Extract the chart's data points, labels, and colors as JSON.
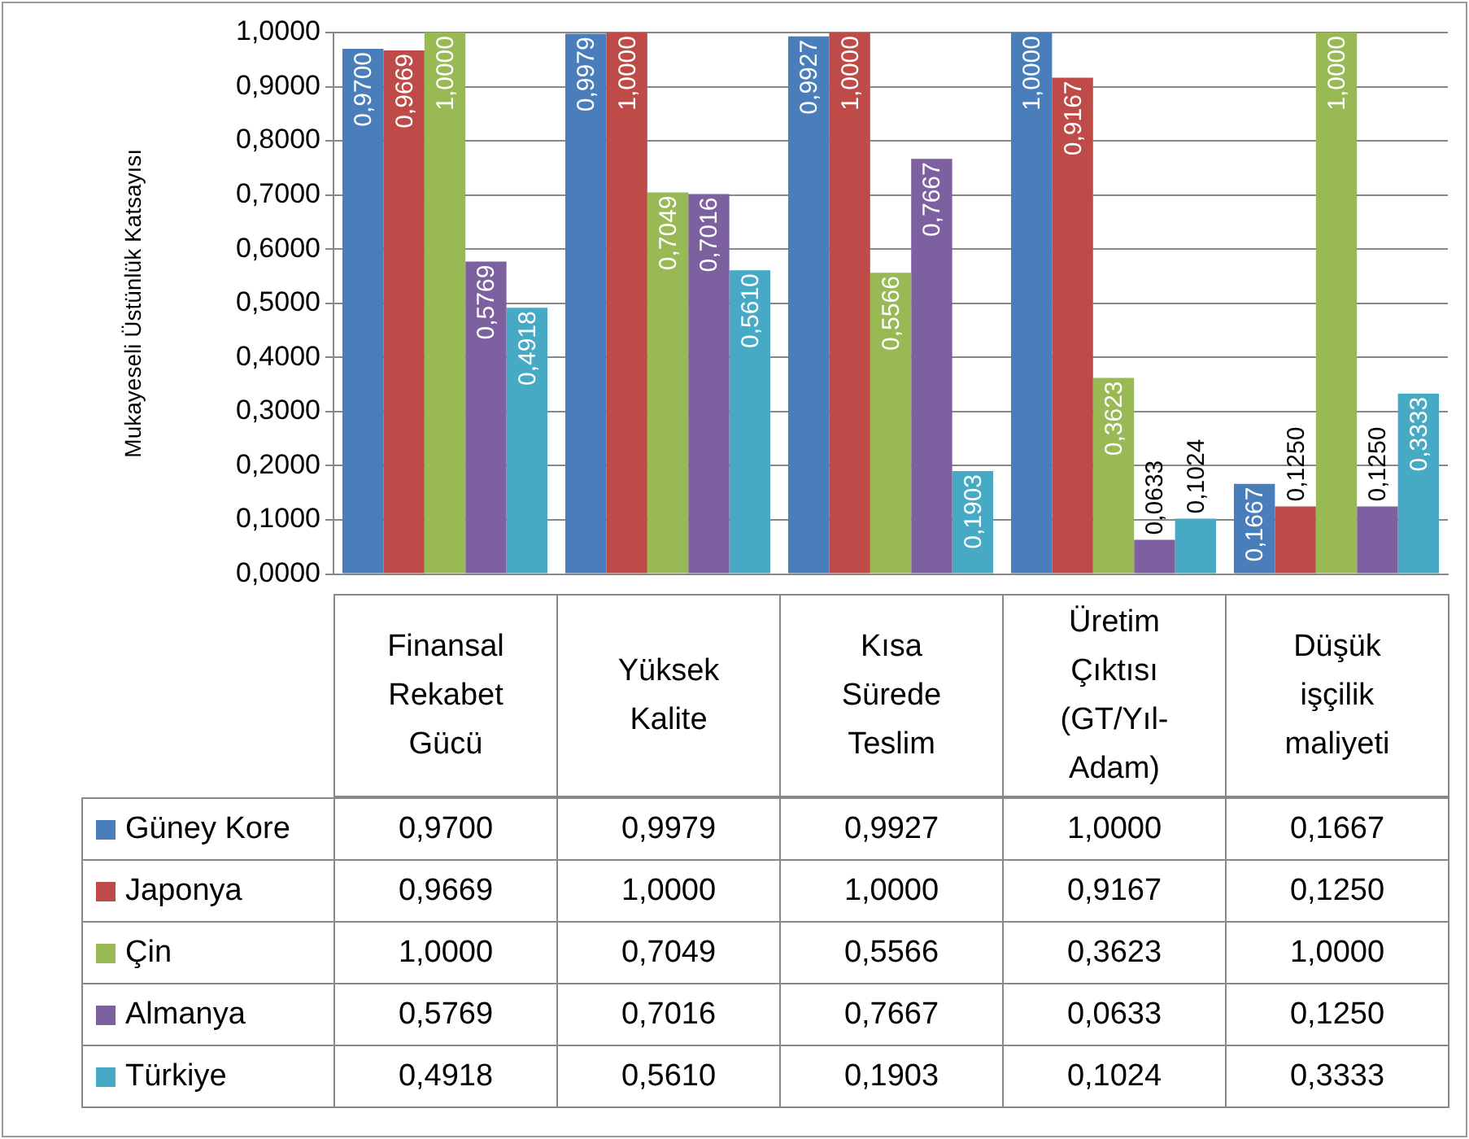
{
  "chart_data": {
    "type": "bar",
    "ylabel": "Mukayeseli Üstünlük Katsayısı",
    "categories": [
      "Finansal Rekabet Gücü",
      "Yüksek Kalite",
      "Kısa Sürede Teslim",
      "Üretim Çıktısı (GT/Yıl-Adam)",
      "Düşük işçilik maliyeti"
    ],
    "series": [
      {
        "name": "Güney Kore",
        "color": "#4a7ebb",
        "values": [
          0.97,
          0.9979,
          0.9927,
          1.0,
          0.1667
        ],
        "value_labels": [
          "0,9700",
          "0,9979",
          "0,9927",
          "1,0000",
          "0,1667"
        ]
      },
      {
        "name": "Japonya",
        "color": "#be4b48",
        "values": [
          0.9669,
          1.0,
          1.0,
          0.9167,
          0.125
        ],
        "value_labels": [
          "0,9669",
          "1,0000",
          "1,0000",
          "0,9167",
          "0,1250"
        ]
      },
      {
        "name": "Çin",
        "color": "#98b954",
        "values": [
          1.0,
          0.7049,
          0.5566,
          0.3623,
          1.0
        ],
        "value_labels": [
          "1,0000",
          "0,7049",
          "0,5566",
          "0,3623",
          "1,0000"
        ]
      },
      {
        "name": "Almanya",
        "color": "#7d60a0",
        "values": [
          0.5769,
          0.7016,
          0.7667,
          0.0633,
          0.125
        ],
        "value_labels": [
          "0,5769",
          "0,7016",
          "0,7667",
          "0,0633",
          "0,1250"
        ]
      },
      {
        "name": "Türkiye",
        "color": "#46aac5",
        "values": [
          0.4918,
          0.561,
          0.1903,
          0.1024,
          0.3333
        ],
        "value_labels": [
          "0,4918",
          "0,5610",
          "0,1903",
          "0,1024",
          "0,3333"
        ]
      }
    ],
    "ylim": [
      0,
      1
    ],
    "yticks": [
      {
        "value": 0,
        "label": "0,0000"
      },
      {
        "value": 0.1,
        "label": "0,1000"
      },
      {
        "value": 0.2,
        "label": "0,2000"
      },
      {
        "value": 0.3,
        "label": "0,3000"
      },
      {
        "value": 0.4,
        "label": "0,4000"
      },
      {
        "value": 0.5,
        "label": "0,5000"
      },
      {
        "value": 0.6,
        "label": "0,6000"
      },
      {
        "value": 0.7,
        "label": "0,7000"
      },
      {
        "value": 0.8,
        "label": "0,8000"
      },
      {
        "value": 0.9,
        "label": "0,9000"
      },
      {
        "value": 1,
        "label": "1,0000"
      }
    ],
    "grid": "y",
    "legend": "bottom left"
  }
}
